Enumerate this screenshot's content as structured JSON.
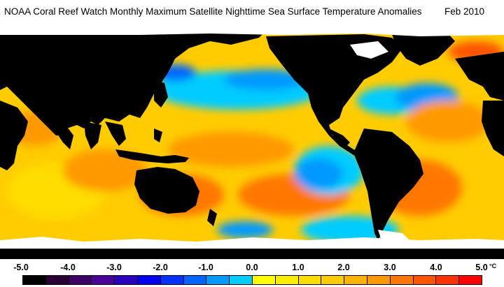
{
  "title": {
    "main": "NOAA Coral Reef Watch Monthly Maximum Satellite Nighttime Sea Surface Temperature Anomalies",
    "date": "Feb 2010"
  },
  "legend": {
    "ticks": [
      {
        "label": "-5.0"
      },
      {
        "label": "-4.0"
      },
      {
        "label": "-3.0"
      },
      {
        "label": "-2.0"
      },
      {
        "label": "-1.0"
      },
      {
        "label": "0.0"
      },
      {
        "label": "1.0"
      },
      {
        "label": "2.0"
      },
      {
        "label": "3.0"
      },
      {
        "label": "4.0"
      },
      {
        "label": "5.0"
      }
    ],
    "unit": "°C",
    "colors": [
      "#000000",
      "#2a0033",
      "#3d0066",
      "#4a0099",
      "#2a00bb",
      "#0000ee",
      "#0033ff",
      "#0066ff",
      "#0099ff",
      "#00ccff",
      "#ffff00",
      "#ffee00",
      "#ffdd00",
      "#ffcc00",
      "#ffb300",
      "#ff9900",
      "#ff7700",
      "#ff5500",
      "#ff3300",
      "#ff0000"
    ]
  },
  "map": {
    "land_color": "#000000",
    "ice_color": "#ffffff",
    "ocean_base_color": "#ffcc00"
  }
}
